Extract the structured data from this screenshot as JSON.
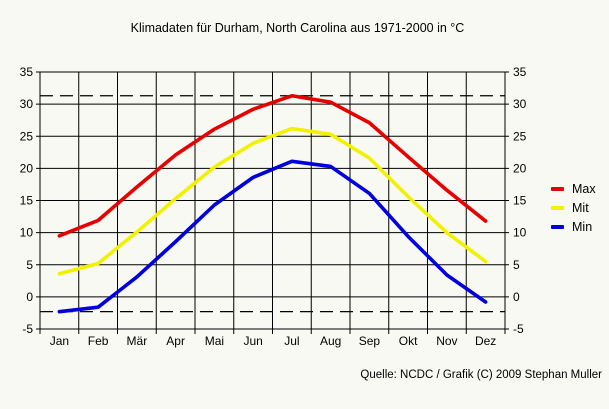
{
  "title": "Klimadaten für Durham, North Carolina aus 1971-2000 in °C",
  "source": "Quelle: NCDC / Grafik (C) 2009 Stephan Muller",
  "legend": {
    "items": [
      {
        "label": "Max",
        "color": "#e60000"
      },
      {
        "label": "Mit",
        "color": "#f2f200"
      },
      {
        "label": "Min",
        "color": "#0000dc"
      }
    ],
    "position": "right"
  },
  "chart_data": {
    "type": "line",
    "title": "Klimadaten für Durham, North Carolina aus 1971-2000 in °C",
    "categories": [
      "Jan",
      "Feb",
      "Mär",
      "Apr",
      "Mai",
      "Jun",
      "Jul",
      "Aug",
      "Sep",
      "Okt",
      "Nov",
      "Dez"
    ],
    "series": [
      {
        "name": "Max",
        "color": "#e60000",
        "values": [
          9.5,
          11.9,
          17.1,
          22.1,
          26.1,
          29.2,
          31.3,
          30.3,
          27.1,
          21.8,
          16.6,
          11.8
        ]
      },
      {
        "name": "Mit",
        "color": "#f2f200",
        "values": [
          3.6,
          5.2,
          10.1,
          15.3,
          20.2,
          23.9,
          26.2,
          25.3,
          21.6,
          15.6,
          10.0,
          5.5
        ]
      },
      {
        "name": "Min",
        "color": "#0000dc",
        "values": [
          -2.3,
          -1.6,
          3.1,
          8.6,
          14.3,
          18.6,
          21.1,
          20.3,
          16.1,
          9.4,
          3.4,
          -0.8
        ]
      }
    ],
    "xlabel": "",
    "ylabel": "",
    "unit": "°C",
    "ylim": [
      -5,
      35
    ],
    "ytick_step": 5,
    "yticks_mirrored_both_sides": true,
    "dashed_reference_lines": [
      31.3,
      -2.3
    ],
    "grid": true,
    "grid_color": "#000000",
    "legend_position": "right"
  }
}
